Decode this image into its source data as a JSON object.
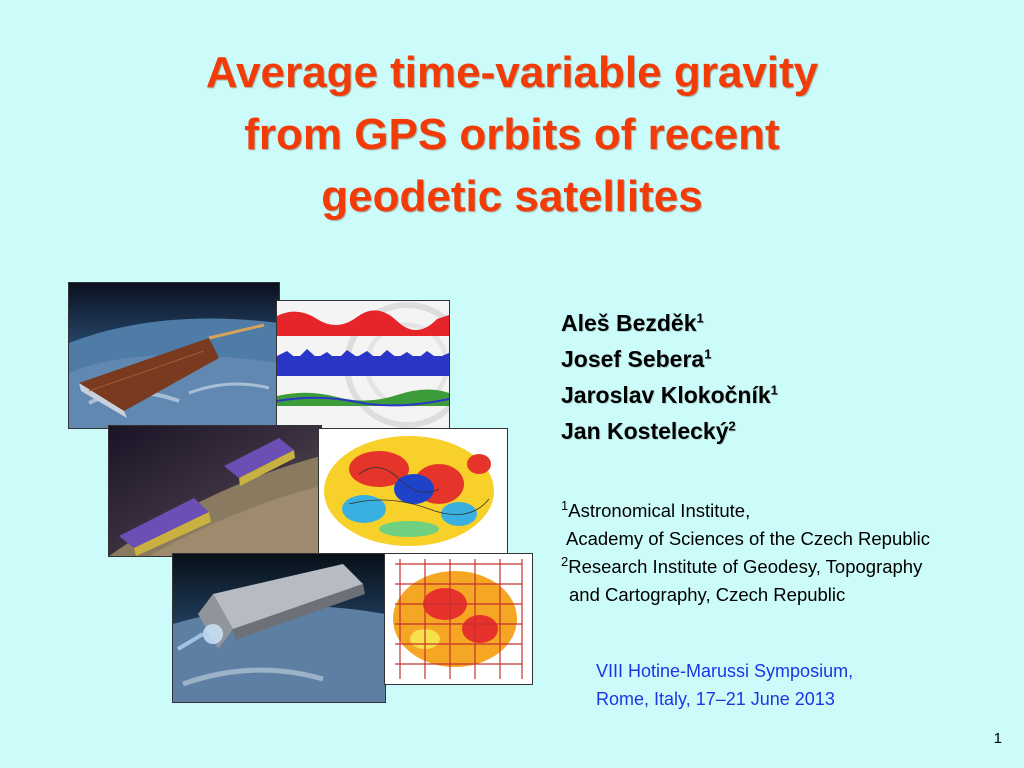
{
  "slide": {
    "title_lines": [
      "Average time-variable gravity",
      "from GPS orbits of recent",
      "geodetic satellites"
    ],
    "authors": [
      {
        "name": "Aleš Bezděk",
        "sup": "1"
      },
      {
        "name": "Josef Sebera",
        "sup": "1"
      },
      {
        "name": "Jaroslav Klokočník",
        "sup": "1"
      },
      {
        "name": "Jan Kostelecký",
        "sup": "2"
      }
    ],
    "affiliations": {
      "line1_sup": "1",
      "line1": "Astronomical Institute,",
      "line2": "Academy of Sciences of the Czech Republic",
      "line3_sup": "2",
      "line3": "Research Institute of Geodesy, Topography",
      "line4": "and Cartography, Czech Republic"
    },
    "symposium": {
      "line1": "VIII Hotine-Marussi Symposium,",
      "line2": "Rome, Italy, 17–21 June 2013"
    },
    "page_number": "1",
    "colors": {
      "title": "#f23b06",
      "background": "#ccfcfa",
      "symposium": "#1d35e6"
    }
  }
}
